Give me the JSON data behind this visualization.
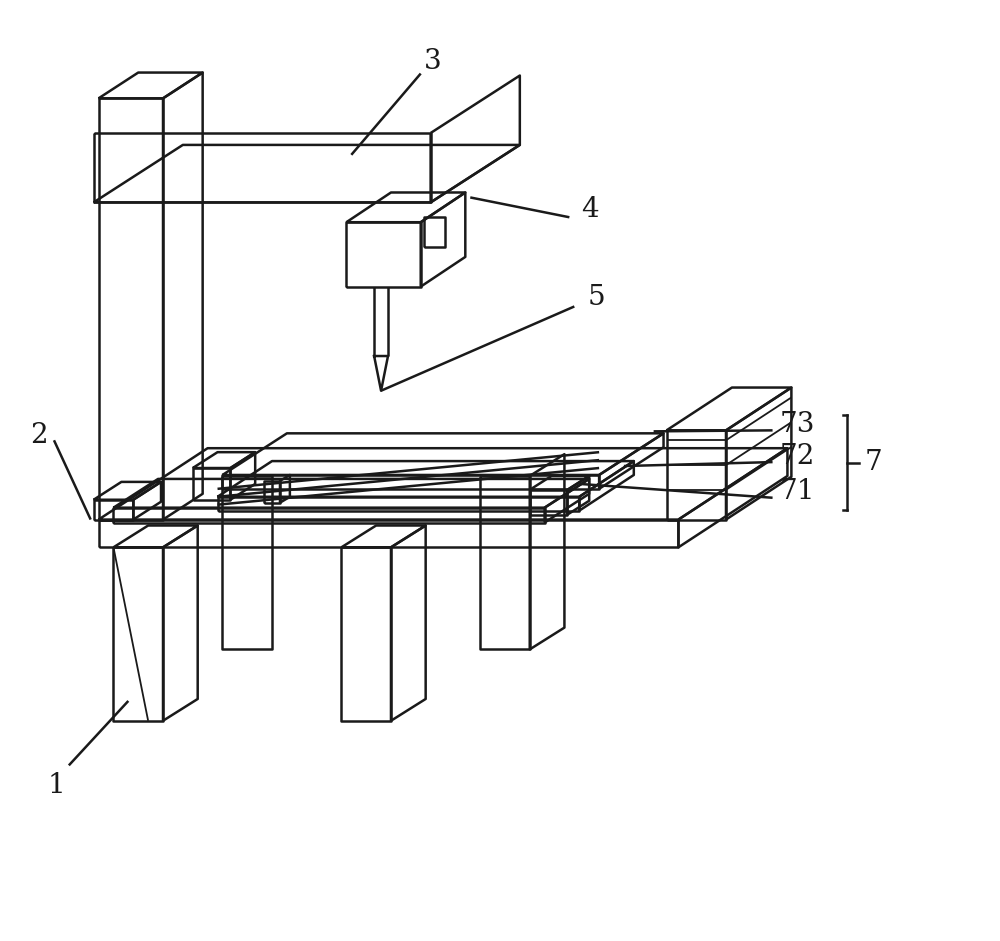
{
  "bg_color": "#ffffff",
  "line_color": "#1a1a1a",
  "line_width": 1.8,
  "fig_width": 10.0,
  "fig_height": 9.41,
  "label_fontsize": 20
}
